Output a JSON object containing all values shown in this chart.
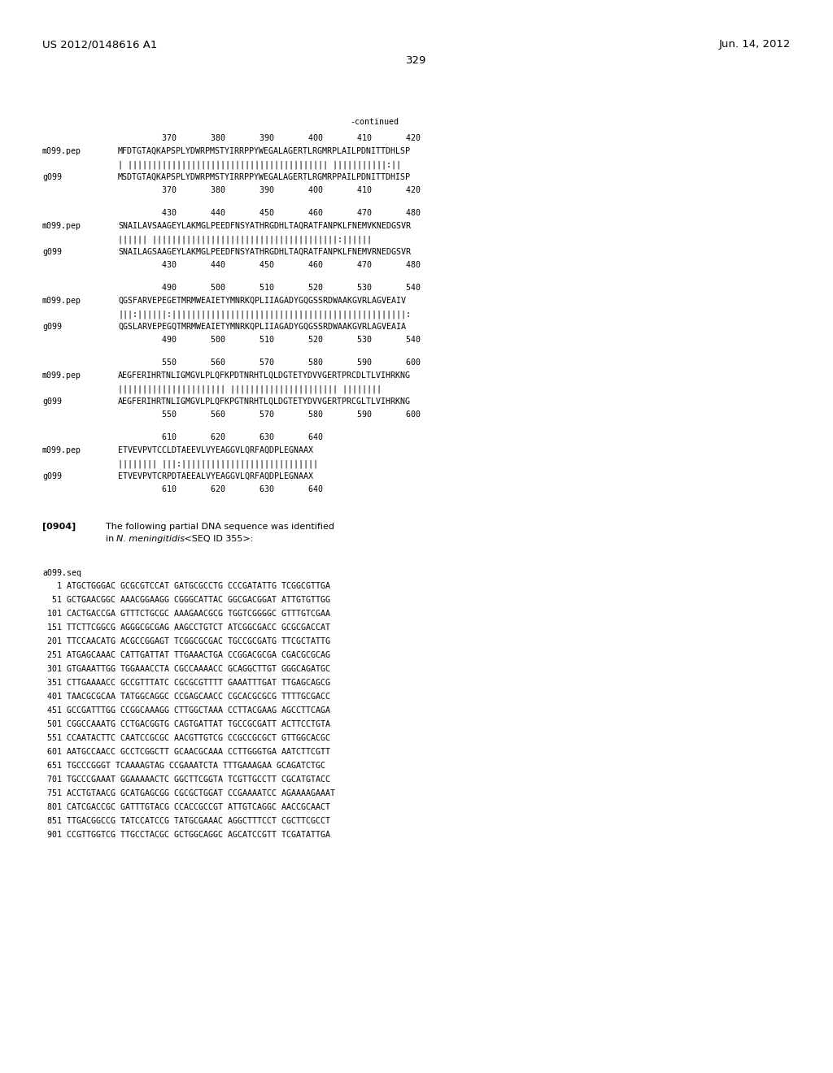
{
  "page_header_left": "US 2012/0148616 A1",
  "page_header_right": "Jun. 14, 2012",
  "page_number": "329",
  "continued_label": "-continued",
  "background_color": "#ffffff",
  "text_color": "#000000",
  "font_size_header": 9.5,
  "font_size_body": 8.0,
  "font_size_seq": 7.2,
  "alignment_blocks": [
    {
      "num_line": "         370       380       390       400       410       420",
      "seq1_label": "m099.pep",
      "seq1": "MFDTGTAQKAPSPLYDWRPMSTYIRRPPYWEGALAGERTLRGMRPLAILPDNITTDHLSP",
      "match": "| ||||||||||||||||||||||||||||||||||||||||| |||||||||||:||",
      "seq2_label": "g099",
      "seq2": "MSDTGTAQKAPSPLYDWRPMSTYIRRPPYWEGALAGERTLRGMRPPAILPDNITTDHISP",
      "num_line2": "         370       380       390       400       410       420"
    },
    {
      "num_line": "         430       440       450       460       470       480",
      "seq1_label": "m099.pep",
      "seq1": "SNAILAVSAAGEYLAKMGLPEEDFNSYATHRGDHLTAQRATFANPKLFNEMVKNEDGSVR",
      "match": "|||||| ||||||||||||||||||||||||||||||||||||||:||||||",
      "seq2_label": "g099",
      "seq2": "SNAILAGSAAGEYLAKMGLPEEDFNSYATHRGDHLTAQRATFANPKLFNEMVRNEDGSVR",
      "num_line2": "         430       440       450       460       470       480"
    },
    {
      "num_line": "         490       500       510       520       530       540",
      "seq1_label": "m099.pep",
      "seq1": "QGSFARVEPEGETMRMWEAIETYMNRKQPLIIAGADYGQGSSRDWAAKGVRLAGVEAIV",
      "match": "|||:||||||:||||||||||||||||||||||||||||||||||||||||||||||||:",
      "seq2_label": "g099",
      "seq2": "QGSLARVEPEGQTMRMWEAIETYMNRKQPLIIAGADYGQGSSRDWAAKGVRLAGVEAIA",
      "num_line2": "         490       500       510       520       530       540"
    },
    {
      "num_line": "         550       560       570       580       590       600",
      "seq1_label": "m099.pep",
      "seq1": "AEGFERIHRTNLIGMGVLPLQFKPDTNRHTLQLDGTETYDVVGERTPRCDLTLVIHRKNG",
      "match": "|||||||||||||||||||||| |||||||||||||||||||||| ||||||||",
      "seq2_label": "g099",
      "seq2": "AEGFERIHRTNLIGMGVLPLQFKPGTNRHTLQLDGTETYDVVGERTPRCGLTLVIHRKNG",
      "num_line2": "         550       560       570       580       590       600"
    },
    {
      "num_line": "         610       620       630       640",
      "seq1_label": "m099.pep",
      "seq1": "ETVEVPVTCCLDTAEEVLVYEAGGVLQRFAQDPLEGNAAX",
      "match": "|||||||| |||:||||||||||||||||||||||||||||",
      "seq2_label": "g099",
      "seq2": "ETVEVPVTCRPDTAEEALVYEAGGVLQRFAQDPLEGNAAX",
      "num_line2": "         610       620       630       640"
    }
  ],
  "paragraph_label": "[0904]",
  "paragraph_line1": "The following partial DNA sequence was identified",
  "paragraph_line2_pre": "in ",
  "paragraph_line2_italic": "N. meningitidis",
  "paragraph_line2_post": " <SEQ ID 355>:",
  "dna_label": "a099.seq",
  "dna_sequences": [
    "   1 ATGCTGGGAC GCGCGTCCAT GATGCGCCTG CCCGATATTG TCGGCGTTGA",
    "  51 GCTGAACGGC AAACGGAAGG CGGGCATTAC GGCGACGGAT ATTGTGTTGG",
    " 101 CACTGACCGA GTTTCTGCGC AAAGAACGCG TGGTCGGGGC GTTTGTCGAA",
    " 151 TTCTTCGGCG AGGGCGCGAG AAGCCTGTCT ATCGGCGACC GCGCGACCAT",
    " 201 TTCCAACATG ACGCCGGAGT TCGGCGCGAC TGCCGCGATG TTCGCTATTG",
    " 251 ATGAGCAAAC CATTGATTAT TTGAAACTGA CCGGACGCGA CGACGCGCAG",
    " 301 GTGAAATTGG TGGAAACCTA CGCCAAAACC GCAGGCTTGT GGGCAGATGC",
    " 351 CTTGAAAACC GCCGTTTATC CGCGCGTTTT GAAATTTGAT TTGAGCAGCG",
    " 401 TAACGCGCAA TATGGCAGGC CCGAGCAACC CGCACGCGCG TTTTGCGACC",
    " 451 GCCGATTTGG CCGGCAAAGG CTTGGCTAAA CCTTACGAAG AGCCTTCAGA",
    " 501 CGGCCAAATG CCTGACGGTG CAGTGATTAT TGCCGCGATT ACTTCCTGTA",
    " 551 CCAATACTTC CAATCCGCGC AACGTTGTCG CCGCCGCGCT GTTGGCACGC",
    " 601 AATGCCAACC GCCTCGGCTT GCAACGCAAA CCTTGGGTGA AATCTTCGTT",
    " 651 TGCCCGGGT TCAAAAGTAG CCGAAATCTA TTTGAAAGAA GCAGATCTGC",
    " 701 TGCCCGAAAT GGAAAAACTC GGCTTCGGTA TCGTTGCCTT CGCATGTACC",
    " 751 ACCTGTAACG GCATGAGCGG CGCGCTGGAT CCGAAAATCC AGAAAAGAAAT",
    " 801 CATCGACCGC GATTTGTACG CCACCGCCGT ATTGTCAGGC AACCGCAACT",
    " 851 TTGACGGCCG TATCCATCCG TATGCGAAAC AGGCTTTCCT CGCTTCGCCT",
    " 901 CCGTTGGTCG TTGCCTACGC GCTGGCAGGC AGCATCCGTT TCGATATTGA"
  ]
}
